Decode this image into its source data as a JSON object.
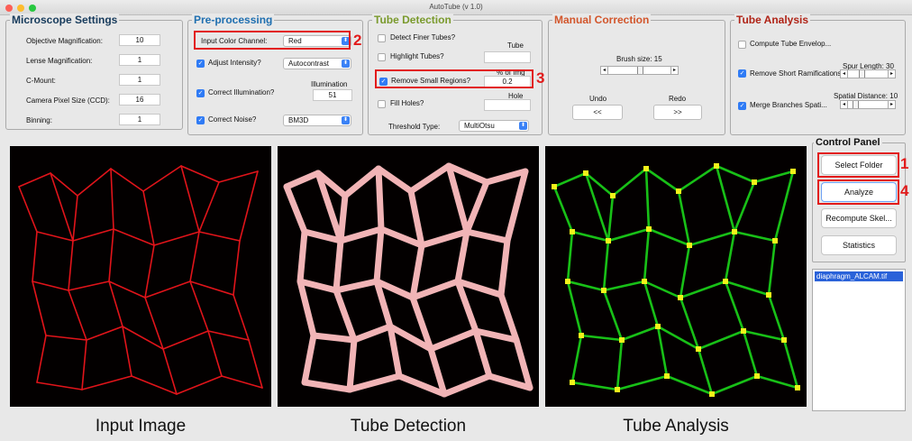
{
  "window": {
    "title": "AutoTube (v 1.0)"
  },
  "microscope": {
    "title": "Microscope Settings",
    "fields": [
      {
        "label": "Objective Magnification:",
        "value": "10"
      },
      {
        "label": "Lense Magnification:",
        "value": "1"
      },
      {
        "label": "C-Mount:",
        "value": "1"
      },
      {
        "label": "Camera Pixel Size (CCD):",
        "value": "16"
      },
      {
        "label": "Binning:",
        "value": "1"
      }
    ]
  },
  "preprocessing": {
    "title": "Pre-processing",
    "input_channel_label": "Input Color Channel:",
    "input_channel_value": "Red",
    "adjust_label": "Adjust Intensity?",
    "adjust_value": "Autocontrast",
    "illumination_label": "Correct Illumination?",
    "illumination_head": "Illumination",
    "illumination_value": "51",
    "noise_label": "Correct Noise?",
    "noise_value": "BM3D"
  },
  "tube_detection": {
    "title": "Tube Detection",
    "finer_label": "Detect Finer Tubes?",
    "tube_head": "Tube",
    "highlight_label": "Highlight Tubes?",
    "pct_head": "% of Img",
    "remove_label": "Remove Small Regions?",
    "remove_value": "0.2",
    "hole_head": "Hole",
    "fill_label": "Fill Holes?",
    "threshold_label": "Threshold Type:",
    "threshold_value": "MultiOtsu"
  },
  "manual": {
    "title": "Manual Correction",
    "brush_label": "Brush size: 15",
    "brush_level": 0.5,
    "undo_label": "Undo",
    "redo_label": "Redo",
    "undo_button": "<<",
    "redo_button": ">>"
  },
  "analysis": {
    "title": "Tube Analysis",
    "envelope_label": "Compute Tube Envelop...",
    "spur_label": "Spur Length: 30",
    "remove_label": "Remove Short Ramifications",
    "spatial_label": "Spatial Distance: 10",
    "merge_label": "Merge Branches Spati...",
    "spur_level": 0.3,
    "spatial_level": 0.1
  },
  "control": {
    "title": "Control Panel",
    "select": "Select Folder",
    "analyze": "Analyze",
    "recompute": "Recompute Skel...",
    "statistics": "Statistics",
    "files": [
      "diaphragm_ALCAM.tif"
    ]
  },
  "annotations": [
    "1",
    "2",
    "3",
    "4"
  ],
  "captions": {
    "input": "Input Image",
    "detection": "Tube Detection",
    "analysis": "Tube Analysis"
  },
  "colors": {
    "accent_red": "#e21b1b",
    "input_vessel": "#e0141a",
    "detect_mask": "#f1b4b6",
    "analysis_skel": "#18c017",
    "junction": "#f2f21a",
    "pre_title": "#1f6fb0",
    "tube_title": "#7a9a2d",
    "manual_title": "#d2562c",
    "analysis_title": "#b02417"
  }
}
